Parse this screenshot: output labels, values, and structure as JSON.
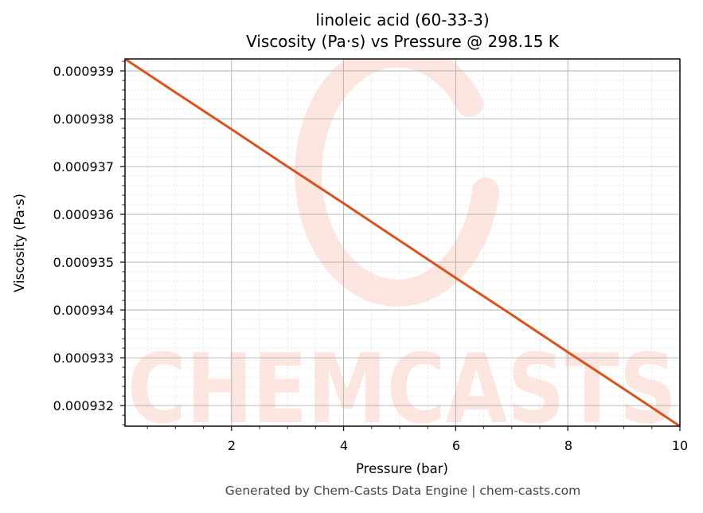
{
  "title": {
    "line1": "linoleic acid (60-33-3)",
    "line2": "Viscosity (Pa·s) vs Pressure @ 298.15 K"
  },
  "axes": {
    "xlabel": "Pressure (bar)",
    "ylabel": "Viscosity (Pa·s)",
    "xticks": [
      "2",
      "4",
      "6",
      "8",
      "10"
    ],
    "yticks": [
      "0.000939",
      "0.000938",
      "0.000937",
      "0.000936",
      "0.000935",
      "0.000934",
      "0.000933",
      "0.000932"
    ]
  },
  "watermark": {
    "text": "CHEMCASTS"
  },
  "footer": {
    "text": "Generated by Chem-Casts Data Engine | chem-casts.com"
  },
  "colors": {
    "line": "#d9531e",
    "watermark": "#fde5e0",
    "grid_major": "#b0b0b0",
    "grid_minor": "#e0e0e0"
  },
  "chart_data": {
    "type": "line",
    "title": "linoleic acid (60-33-3)\nViscosity (Pa·s) vs Pressure @ 298.15 K",
    "xlabel": "Pressure (bar)",
    "ylabel": "Viscosity (Pa·s)",
    "xlim": [
      0.1,
      10
    ],
    "ylim": [
      0.00093157,
      0.00093925
    ],
    "grid": true,
    "legend": null,
    "series": [
      {
        "name": "Viscosity",
        "color": "#d9531e",
        "x": [
          0.1,
          1,
          2,
          3,
          4,
          5,
          6,
          7,
          8,
          9,
          10
        ],
        "y": [
          0.00093925,
          0.00093855,
          0.00093778,
          0.000937,
          0.00093623,
          0.00093545,
          0.00093467,
          0.0009339,
          0.00093312,
          0.00093235,
          0.00093157
        ]
      }
    ]
  }
}
